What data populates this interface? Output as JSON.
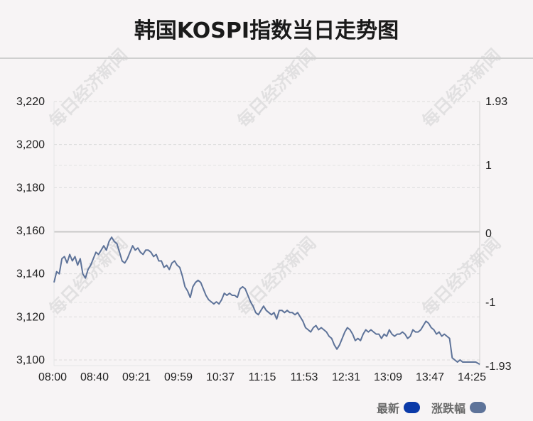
{
  "chart_data": {
    "type": "line",
    "title": "韩国KOSPI指数当日走势图",
    "watermark": "每日经济新闻",
    "x_tick_labels": [
      "08:00",
      "08:40",
      "09:21",
      "09:59",
      "10:37",
      "11:15",
      "11:53",
      "12:31",
      "13:09",
      "13:47",
      "14:25"
    ],
    "y_left": {
      "ylim": [
        3098,
        3220
      ],
      "ticks": [
        3220,
        3200,
        3180,
        3160,
        3140,
        3120,
        3100
      ],
      "tick_labels": [
        "3,220",
        "3,200",
        "3,180",
        "3,160",
        "3,140",
        "3,120",
        "3,100"
      ]
    },
    "y_right": {
      "label_values": [
        1.93,
        1,
        0,
        -1,
        -1.93
      ],
      "tick_labels": [
        "1.93",
        "1",
        "0",
        "-1",
        "-1.93"
      ]
    },
    "reference_close": 3159.5,
    "grid": true,
    "legend_position": "bottom-right",
    "series": [
      {
        "name": "最新",
        "color": "#0b3aa8",
        "points": [
          [
            0,
            3136
          ],
          [
            2,
            3141
          ],
          [
            4,
            3140
          ],
          [
            6,
            3147
          ],
          [
            8,
            3148
          ],
          [
            10,
            3145
          ],
          [
            12,
            3149
          ],
          [
            14,
            3146
          ],
          [
            16,
            3148
          ],
          [
            18,
            3144
          ],
          [
            20,
            3147
          ],
          [
            22,
            3140
          ],
          [
            24,
            3138
          ],
          [
            26,
            3142
          ],
          [
            28,
            3144
          ],
          [
            30,
            3147
          ],
          [
            32,
            3150
          ],
          [
            34,
            3149
          ],
          [
            36,
            3151
          ],
          [
            38,
            3153
          ],
          [
            40,
            3151
          ],
          [
            42,
            3155
          ],
          [
            44,
            3157
          ],
          [
            46,
            3155
          ],
          [
            48,
            3154
          ],
          [
            50,
            3150
          ],
          [
            52,
            3146
          ],
          [
            54,
            3145
          ],
          [
            56,
            3147
          ],
          [
            58,
            3150
          ],
          [
            60,
            3153
          ],
          [
            62,
            3151
          ],
          [
            64,
            3152
          ],
          [
            66,
            3150
          ],
          [
            68,
            3149
          ],
          [
            70,
            3151
          ],
          [
            72,
            3151
          ],
          [
            74,
            3150
          ],
          [
            76,
            3148
          ],
          [
            78,
            3149
          ],
          [
            80,
            3146
          ],
          [
            82,
            3146
          ],
          [
            84,
            3143
          ],
          [
            86,
            3144
          ],
          [
            88,
            3142
          ],
          [
            90,
            3145
          ],
          [
            92,
            3146
          ],
          [
            94,
            3144
          ],
          [
            96,
            3143
          ],
          [
            98,
            3139
          ],
          [
            100,
            3134
          ],
          [
            102,
            3132
          ],
          [
            104,
            3129
          ],
          [
            106,
            3134
          ],
          [
            108,
            3136
          ],
          [
            110,
            3137
          ],
          [
            112,
            3136
          ],
          [
            114,
            3133
          ],
          [
            116,
            3130
          ],
          [
            118,
            3128
          ],
          [
            120,
            3127
          ],
          [
            122,
            3126
          ],
          [
            124,
            3127
          ],
          [
            126,
            3126
          ],
          [
            128,
            3128
          ],
          [
            130,
            3131
          ],
          [
            132,
            3130
          ],
          [
            134,
            3131
          ],
          [
            136,
            3130
          ],
          [
            138,
            3130
          ],
          [
            140,
            3129
          ],
          [
            142,
            3133
          ],
          [
            144,
            3134
          ],
          [
            146,
            3133
          ],
          [
            148,
            3130
          ],
          [
            150,
            3127
          ],
          [
            152,
            3125
          ],
          [
            154,
            3122
          ],
          [
            156,
            3121
          ],
          [
            158,
            3123
          ],
          [
            160,
            3125
          ],
          [
            162,
            3123
          ],
          [
            164,
            3122
          ],
          [
            166,
            3121
          ],
          [
            168,
            3122
          ],
          [
            170,
            3119
          ],
          [
            172,
            3123
          ],
          [
            174,
            3123
          ],
          [
            176,
            3122
          ],
          [
            178,
            3123
          ],
          [
            180,
            3122
          ],
          [
            182,
            3122
          ],
          [
            184,
            3121
          ],
          [
            186,
            3122
          ],
          [
            188,
            3120
          ],
          [
            190,
            3118
          ],
          [
            192,
            3115
          ],
          [
            194,
            3114
          ],
          [
            196,
            3113
          ],
          [
            198,
            3115
          ],
          [
            200,
            3116
          ],
          [
            202,
            3114
          ],
          [
            204,
            3115
          ],
          [
            206,
            3114
          ],
          [
            208,
            3113
          ],
          [
            210,
            3111
          ],
          [
            212,
            3110
          ],
          [
            214,
            3107
          ],
          [
            216,
            3105
          ],
          [
            218,
            3107
          ],
          [
            220,
            3110
          ],
          [
            222,
            3113
          ],
          [
            224,
            3115
          ],
          [
            226,
            3114
          ],
          [
            228,
            3112
          ],
          [
            230,
            3109
          ],
          [
            232,
            3110
          ],
          [
            234,
            3109
          ],
          [
            236,
            3112
          ],
          [
            238,
            3114
          ],
          [
            240,
            3113
          ],
          [
            242,
            3114
          ],
          [
            244,
            3113
          ],
          [
            246,
            3112
          ],
          [
            248,
            3112
          ],
          [
            250,
            3110
          ],
          [
            252,
            3112
          ],
          [
            254,
            3111
          ],
          [
            256,
            3114
          ],
          [
            258,
            3112
          ],
          [
            260,
            3111
          ],
          [
            262,
            3112
          ],
          [
            264,
            3112
          ],
          [
            266,
            3113
          ],
          [
            268,
            3112
          ],
          [
            270,
            3110
          ],
          [
            272,
            3111
          ],
          [
            274,
            3114
          ],
          [
            276,
            3113
          ],
          [
            278,
            3113
          ],
          [
            280,
            3114
          ],
          [
            282,
            3116
          ],
          [
            284,
            3118
          ],
          [
            286,
            3117
          ],
          [
            288,
            3115
          ],
          [
            290,
            3114
          ],
          [
            292,
            3112
          ],
          [
            294,
            3113
          ],
          [
            296,
            3111
          ],
          [
            298,
            3112
          ],
          [
            300,
            3111
          ],
          [
            302,
            3110
          ],
          [
            304,
            3101
          ],
          [
            306,
            3100
          ],
          [
            308,
            3099
          ],
          [
            310,
            3100
          ],
          [
            312,
            3099
          ],
          [
            314,
            3099
          ],
          [
            316,
            3099
          ],
          [
            318,
            3099
          ],
          [
            320,
            3099
          ],
          [
            322,
            3099
          ],
          [
            325,
            3098
          ]
        ]
      },
      {
        "name": "涨跌幅",
        "color": "#5e7399"
      }
    ]
  }
}
